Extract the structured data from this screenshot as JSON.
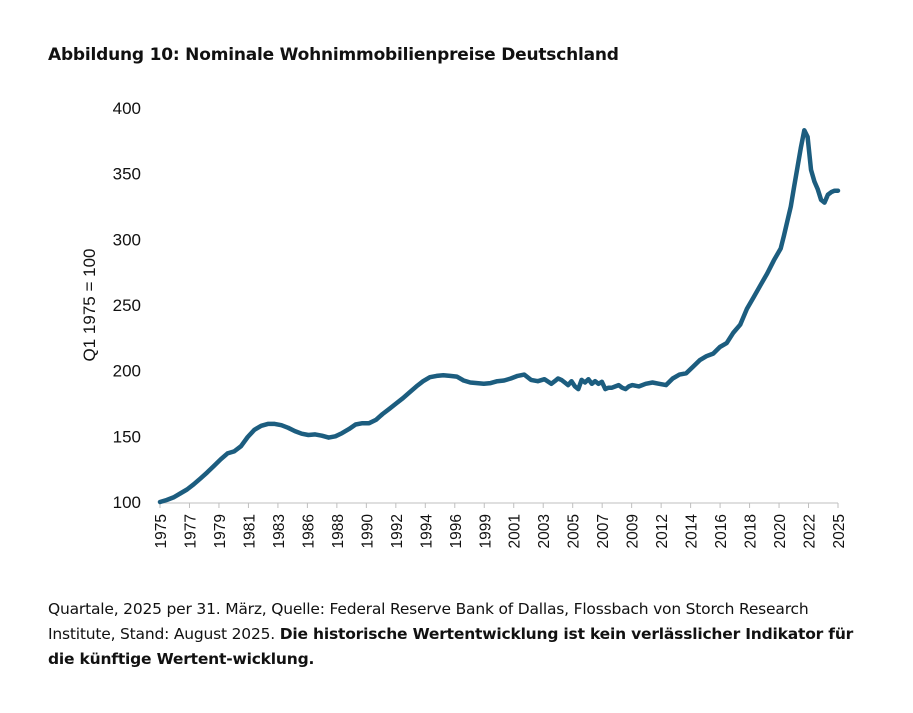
{
  "title": "Abbildung 10: Nominale Wohnimmobilienpreise Deutschland",
  "note": {
    "text": "Quartale, 2025 per 31. März, Quelle: Federal Reserve Bank of Dallas, Flossbach von Storch Research Institute, Stand: August 2025. ",
    "bold": "Die historische Wertentwicklung ist kein verlässlicher Indikator für die künftige Wertent-wicklung."
  },
  "colors": {
    "line": "#1c5d7f",
    "axis": "#bfbfbf"
  },
  "chart_data": {
    "type": "line",
    "title": "Abbildung 10: Nominale Wohnimmobilienpreise Deutschland",
    "xlabel": "",
    "ylabel": "Q1 1975 = 100",
    "ylim": [
      100,
      400
    ],
    "yticks": [
      "100",
      "150",
      "200",
      "250",
      "300",
      "350",
      "400"
    ],
    "xlim": [
      1975,
      2025.25
    ],
    "xticks": [
      "1975",
      "1977",
      "1979",
      "1981",
      "1983",
      "1986",
      "1988",
      "1990",
      "1992",
      "1994",
      "1996",
      "1999",
      "2001",
      "2003",
      "2005",
      "2007",
      "2009",
      "2012",
      "2014",
      "2016",
      "2018",
      "2020",
      "2022",
      "2025"
    ],
    "grid": false,
    "series": [
      {
        "x": [
          1975,
          1975.5,
          1976,
          1976.5,
          1977,
          1977.5,
          1978,
          1978.5,
          1979,
          1979.5,
          1980,
          1980.5,
          1981,
          1981.5,
          1982,
          1982.5,
          1983,
          1983.5,
          1984,
          1984.5,
          1985,
          1985.5,
          1986,
          1986.5,
          1987,
          1987.5,
          1988,
          1988.5,
          1989,
          1989.5,
          1990,
          1990.5,
          1991,
          1991.5,
          1992,
          1992.5,
          1993,
          1993.5,
          1994,
          1994.5,
          1995,
          1995.5,
          1996,
          1996.5,
          1997,
          1997.5,
          1998,
          1998.5,
          1999,
          1999.5,
          2000,
          2000.5,
          2001,
          2001.5,
          2002,
          2002.5,
          2003,
          2003.5,
          2004,
          2004.25,
          2004.5,
          2004.75,
          2005,
          2005.25,
          2005.5,
          2005.75,
          2006,
          2006.25,
          2006.5,
          2006.75,
          2007,
          2007.25,
          2007.5,
          2007.75,
          2008,
          2008.25,
          2008.5,
          2008.75,
          2009,
          2009.25,
          2009.5,
          2009.75,
          2010,
          2010.5,
          2011,
          2011.5,
          2012,
          2012.5,
          2013,
          2013.5,
          2014,
          2014.5,
          2015,
          2015.5,
          2016,
          2016.5,
          2017,
          2017.5,
          2018,
          2018.5,
          2019,
          2019.5,
          2020,
          2020.5,
          2021,
          2021.25,
          2021.5,
          2021.75,
          2022,
          2022.25,
          2022.5,
          2022.75,
          2023,
          2023.25,
          2023.5,
          2023.75,
          2024,
          2024.25,
          2024.5,
          2024.75,
          2025,
          2025.25
        ],
        "y": [
          100,
          101.5,
          103.5,
          106.5,
          109.5,
          113.5,
          118,
          122.5,
          127.5,
          132.5,
          137,
          138.5,
          142.5,
          149.5,
          155,
          158,
          159.5,
          159.5,
          158.5,
          156.5,
          154,
          152,
          151,
          151.5,
          150.5,
          149,
          150,
          152.5,
          155.5,
          159,
          160,
          160,
          162.5,
          167,
          171,
          175,
          179,
          183.5,
          188,
          192,
          195,
          196,
          196.5,
          196,
          195.5,
          192.5,
          191,
          190.5,
          190,
          190.5,
          192,
          192.5,
          194,
          196,
          197,
          193,
          192,
          193.5,
          190,
          192,
          194,
          193,
          191,
          189,
          192,
          188,
          186,
          193,
          191,
          193.5,
          190,
          192,
          190,
          191.5,
          186,
          187,
          187,
          188,
          189,
          187,
          186,
          188,
          189,
          188,
          190,
          191,
          190,
          189,
          194,
          197,
          198,
          203,
          208,
          211,
          213,
          218,
          221,
          229,
          235,
          247,
          256,
          265,
          274,
          284,
          293,
          303,
          314,
          325,
          340,
          355,
          370,
          383,
          378,
          353,
          344,
          338,
          330,
          328,
          334,
          336,
          337,
          337
        ]
      }
    ]
  }
}
